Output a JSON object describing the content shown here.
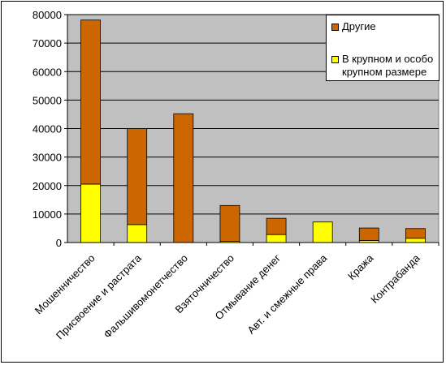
{
  "chart_data": {
    "type": "bar",
    "stacked": true,
    "categories": [
      "Мошенничество",
      "Присвоение и растрата",
      "Фальшивомонетчество",
      "Взяточничество",
      "Отмывание денег",
      "Авт. и смежные права",
      "Кража",
      "Контрабанда"
    ],
    "series": [
      {
        "name": "В крупном и особо крупном размере",
        "color": "#ffff00",
        "values": [
          20500,
          6300,
          0,
          400,
          2800,
          7200,
          700,
          1500
        ]
      },
      {
        "name": "Другие",
        "color": "#cc6600",
        "values": [
          57600,
          33700,
          45200,
          12600,
          5700,
          0,
          4400,
          3400
        ]
      }
    ],
    "ylim": [
      0,
      80000
    ],
    "yticks": [
      0,
      10000,
      20000,
      30000,
      40000,
      50000,
      60000,
      70000,
      80000
    ],
    "grid": true,
    "plot_background": "#c0c0c0",
    "legend_position": "top-right"
  }
}
